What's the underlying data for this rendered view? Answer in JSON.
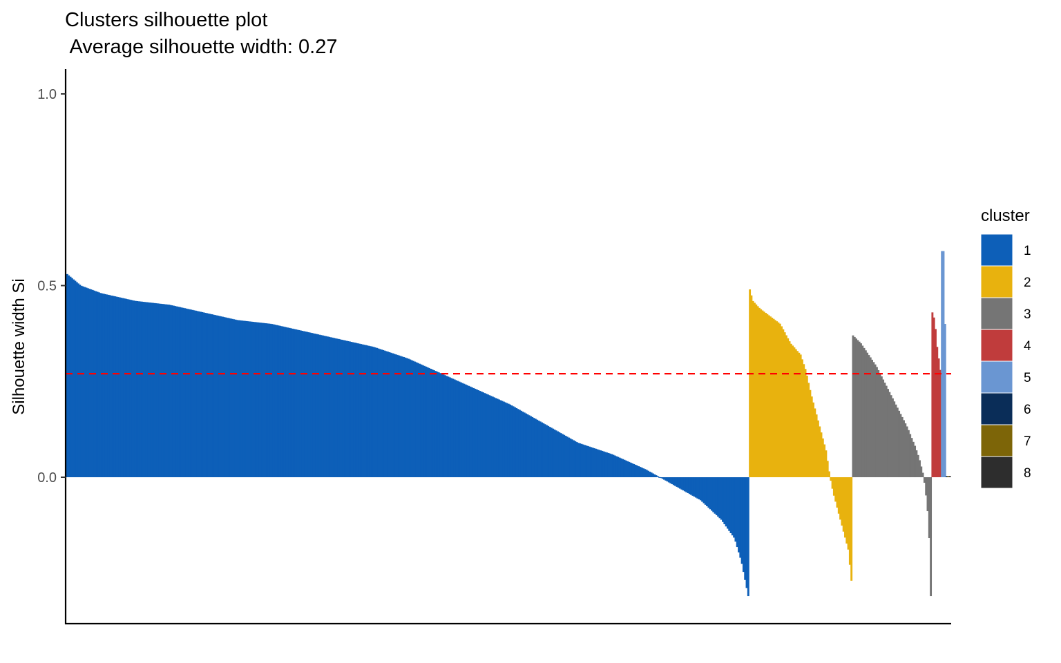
{
  "chart_data": {
    "type": "bar",
    "title": "Clusters silhouette plot",
    "subtitle": " Average silhouette width: 0.27",
    "xlabel": "",
    "ylabel": "Silhouette width Si",
    "ylim": [
      -0.38,
      1.06
    ],
    "yticks": [
      {
        "value": 0.0,
        "label": "0.0"
      },
      {
        "value": 0.5,
        "label": "0.5"
      },
      {
        "value": 1.0,
        "label": "1.0"
      }
    ],
    "reference_line": {
      "value": 0.27,
      "color": "#ff0000",
      "style": "dashed"
    },
    "grid": false,
    "legend": {
      "title": "cluster",
      "placement": "right",
      "entries": [
        {
          "label": "1",
          "color": "#0d5fb8"
        },
        {
          "label": "2",
          "color": "#e8b20e"
        },
        {
          "label": "3",
          "color": "#757575"
        },
        {
          "label": "4",
          "color": "#c03c3c"
        },
        {
          "label": "5",
          "color": "#6a96d2"
        },
        {
          "label": "6",
          "color": "#0a2d58"
        },
        {
          "label": "7",
          "color": "#7d6508"
        },
        {
          "label": "8",
          "color": "#2d2d2d"
        }
      ]
    },
    "series": [
      {
        "cluster": "1",
        "color": "#0d5fb8",
        "n": 430,
        "profile": [
          [
            0,
            0.53
          ],
          [
            0.02,
            0.5
          ],
          [
            0.05,
            0.48
          ],
          [
            0.1,
            0.46
          ],
          [
            0.15,
            0.45
          ],
          [
            0.2,
            0.43
          ],
          [
            0.25,
            0.41
          ],
          [
            0.3,
            0.4
          ],
          [
            0.35,
            0.38
          ],
          [
            0.4,
            0.36
          ],
          [
            0.45,
            0.34
          ],
          [
            0.5,
            0.31
          ],
          [
            0.55,
            0.27
          ],
          [
            0.6,
            0.23
          ],
          [
            0.65,
            0.19
          ],
          [
            0.7,
            0.14
          ],
          [
            0.75,
            0.09
          ],
          [
            0.8,
            0.06
          ],
          [
            0.85,
            0.02
          ],
          [
            0.88,
            -0.01
          ],
          [
            0.9,
            -0.03
          ],
          [
            0.93,
            -0.06
          ],
          [
            0.96,
            -0.11
          ],
          [
            0.98,
            -0.16
          ],
          [
            0.99,
            -0.22
          ],
          [
            1,
            -0.31
          ]
        ]
      },
      {
        "cluster": "2",
        "color": "#e8b20e",
        "n": 65,
        "profile": [
          [
            0,
            0.49
          ],
          [
            0.03,
            0.46
          ],
          [
            0.1,
            0.44
          ],
          [
            0.2,
            0.42
          ],
          [
            0.3,
            0.4
          ],
          [
            0.4,
            0.35
          ],
          [
            0.5,
            0.32
          ],
          [
            0.55,
            0.28
          ],
          [
            0.6,
            0.22
          ],
          [
            0.65,
            0.17
          ],
          [
            0.7,
            0.12
          ],
          [
            0.75,
            0.07
          ],
          [
            0.79,
            0.0
          ],
          [
            0.82,
            -0.04
          ],
          [
            0.87,
            -0.09
          ],
          [
            0.93,
            -0.15
          ],
          [
            0.97,
            -0.19
          ],
          [
            1,
            -0.27
          ]
        ]
      },
      {
        "cluster": "3",
        "color": "#757575",
        "n": 50,
        "profile": [
          [
            0,
            0.37
          ],
          [
            0.1,
            0.35
          ],
          [
            0.2,
            0.32
          ],
          [
            0.3,
            0.29
          ],
          [
            0.4,
            0.25
          ],
          [
            0.5,
            0.21
          ],
          [
            0.6,
            0.17
          ],
          [
            0.7,
            0.13
          ],
          [
            0.8,
            0.08
          ],
          [
            0.85,
            0.05
          ],
          [
            0.9,
            0.01
          ],
          [
            0.93,
            -0.03
          ],
          [
            0.96,
            -0.09
          ],
          [
            0.98,
            -0.16
          ],
          [
            1,
            -0.31
          ]
        ]
      },
      {
        "cluster": "4",
        "color": "#c03c3c",
        "n": 6,
        "profile": [
          [
            0,
            0.43
          ],
          [
            0.3,
            0.41
          ],
          [
            0.6,
            0.34
          ],
          [
            1,
            0.28
          ]
        ]
      },
      {
        "cluster": "5",
        "color": "#6a96d2",
        "n": 3,
        "profile": [
          [
            0,
            0.59
          ],
          [
            0.5,
            0.59
          ],
          [
            1,
            0.4
          ]
        ]
      },
      {
        "cluster": "6",
        "color": "#0a2d58",
        "n": 1,
        "profile": [
          [
            0,
            0.003
          ],
          [
            1,
            0.003
          ]
        ]
      },
      {
        "cluster": "7",
        "color": "#7d6508",
        "n": 1,
        "profile": [
          [
            0,
            0.003
          ],
          [
            1,
            0.003
          ]
        ]
      },
      {
        "cluster": "8",
        "color": "#2d2d2d",
        "n": 1,
        "profile": [
          [
            0,
            0.003
          ],
          [
            1,
            0.003
          ]
        ]
      }
    ]
  }
}
